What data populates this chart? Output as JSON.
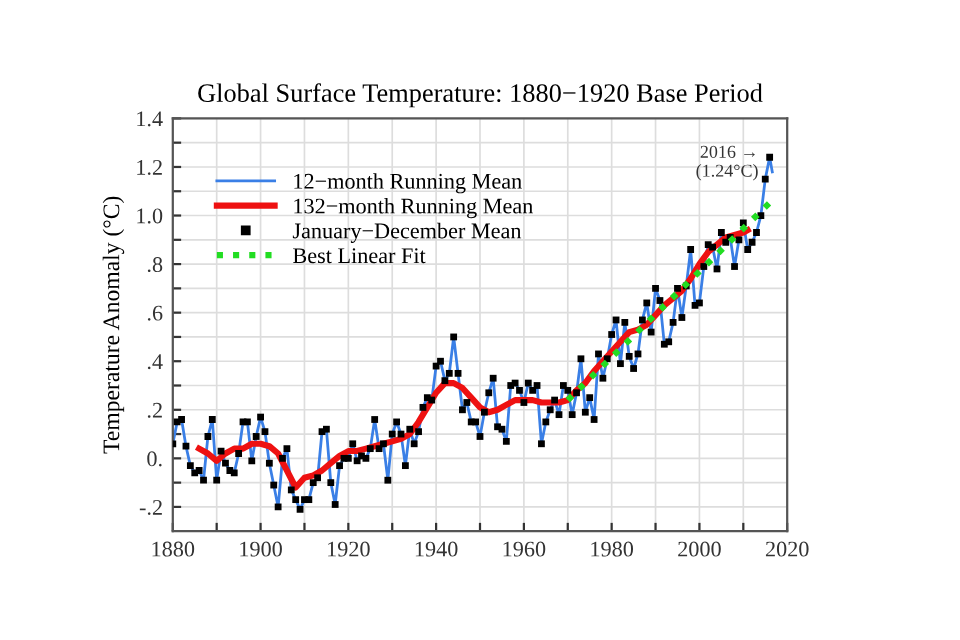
{
  "chart_data": {
    "type": "line",
    "title": "Global Surface Temperature: 1880−1920 Base Period",
    "ylabel": "Temperature Anomaly (°C)",
    "xlim": [
      1880,
      2020
    ],
    "xticks": [
      1880,
      {
        "value": 1890,
        "label": null
      },
      1900,
      {
        "value": 1910,
        "label": null
      },
      1920,
      {
        "value": 1930,
        "label": null
      },
      1940,
      {
        "value": 1950,
        "label": null
      },
      1960,
      {
        "value": 1970,
        "label": null
      },
      1980,
      {
        "value": 1990,
        "label": null
      },
      2000,
      {
        "value": 2010,
        "label": null
      },
      2020
    ],
    "ylim": [
      -0.3,
      1.4
    ],
    "yticks": [
      {
        "value": -0.2,
        "label": "-.2"
      },
      {
        "value": -0.1,
        "label": null
      },
      {
        "value": 0,
        "label": "0."
      },
      {
        "value": 0.1,
        "label": null
      },
      {
        "value": 0.2,
        "label": ".2"
      },
      {
        "value": 0.3,
        "label": null
      },
      {
        "value": 0.4,
        "label": ".4"
      },
      {
        "value": 0.5,
        "label": null
      },
      {
        "value": 0.6,
        "label": ".6"
      },
      {
        "value": 0.7,
        "label": null
      },
      {
        "value": 0.8,
        "label": ".8"
      },
      {
        "value": 0.9,
        "label": null
      },
      {
        "value": 1.0,
        "label": "1.0"
      },
      {
        "value": 1.1,
        "label": null
      },
      {
        "value": 1.2,
        "label": "1.2"
      },
      {
        "value": 1.3,
        "label": null
      },
      1.4
    ],
    "grid": true,
    "legend": "top left",
    "annotations": [
      {
        "text": "2016 →\n(1.24°C)",
        "x": 2016,
        "y": 1.24
      }
    ],
    "series": [
      {
        "name": "12−month Running Mean",
        "color": "#3a7fe6",
        "marker": "none",
        "line_style": "solid",
        "x": [
          1880,
          1881,
          1882,
          1883,
          1884,
          1885,
          1886,
          1887,
          1888,
          1889,
          1890,
          1891,
          1892,
          1893,
          1894,
          1895,
          1896,
          1897,
          1898,
          1899,
          1900,
          1901,
          1902,
          1903,
          1904,
          1905,
          1906,
          1907,
          1908,
          1909,
          1910,
          1911,
          1912,
          1913,
          1914,
          1915,
          1916,
          1917,
          1918,
          1919,
          1920,
          1921,
          1922,
          1923,
          1924,
          1925,
          1926,
          1927,
          1928,
          1929,
          1930,
          1931,
          1932,
          1933,
          1934,
          1935,
          1936,
          1937,
          1938,
          1939,
          1940,
          1941,
          1942,
          1943,
          1944,
          1945,
          1946,
          1947,
          1948,
          1949,
          1950,
          1951,
          1952,
          1953,
          1954,
          1955,
          1956,
          1957,
          1958,
          1959,
          1960,
          1961,
          1962,
          1963,
          1964,
          1965,
          1966,
          1967,
          1968,
          1969,
          1970,
          1971,
          1972,
          1973,
          1974,
          1975,
          1976,
          1977,
          1978,
          1979,
          1980,
          1981,
          1982,
          1983,
          1984,
          1985,
          1986,
          1987,
          1988,
          1989,
          1990,
          1991,
          1992,
          1993,
          1994,
          1995,
          1996,
          1997,
          1998,
          1999,
          2000,
          2001,
          2002,
          2003,
          2004,
          2005,
          2006,
          2007,
          2008,
          2009,
          2010,
          2011,
          2012,
          2013,
          2014,
          2015,
          2016,
          2016.6
        ],
        "values": [
          0.06,
          0.15,
          0.16,
          0.05,
          -0.03,
          -0.06,
          -0.05,
          -0.09,
          0.09,
          0.16,
          -0.09,
          0.03,
          -0.02,
          -0.05,
          -0.06,
          0.02,
          0.15,
          0.15,
          -0.01,
          0.09,
          0.17,
          0.11,
          -0.02,
          -0.11,
          -0.2,
          0.0,
          0.04,
          -0.13,
          -0.17,
          -0.21,
          -0.17,
          -0.17,
          -0.1,
          -0.08,
          0.11,
          0.12,
          -0.1,
          -0.19,
          -0.03,
          0.0,
          0.0,
          0.06,
          -0.01,
          0.01,
          0.0,
          0.04,
          0.16,
          0.04,
          0.06,
          -0.09,
          0.1,
          0.15,
          0.1,
          -0.03,
          0.12,
          0.06,
          0.11,
          0.21,
          0.25,
          0.24,
          0.38,
          0.4,
          0.32,
          0.35,
          0.5,
          0.35,
          0.2,
          0.23,
          0.15,
          0.15,
          0.09,
          0.19,
          0.27,
          0.33,
          0.13,
          0.12,
          0.07,
          0.3,
          0.31,
          0.28,
          0.23,
          0.31,
          0.28,
          0.3,
          0.06,
          0.15,
          0.2,
          0.24,
          0.18,
          0.3,
          0.28,
          0.18,
          0.27,
          0.41,
          0.19,
          0.25,
          0.16,
          0.43,
          0.33,
          0.41,
          0.51,
          0.57,
          0.39,
          0.56,
          0.42,
          0.37,
          0.43,
          0.57,
          0.64,
          0.52,
          0.7,
          0.65,
          0.47,
          0.48,
          0.56,
          0.7,
          0.58,
          0.71,
          0.86,
          0.63,
          0.64,
          0.79,
          0.88,
          0.87,
          0.78,
          0.93,
          0.89,
          0.91,
          0.79,
          0.9,
          0.97,
          0.86,
          0.89,
          0.93,
          1.0,
          1.15,
          1.24,
          1.18
        ]
      },
      {
        "name": "132−month Running Mean",
        "color": "#ee1111",
        "marker": "none",
        "line_style": "solid",
        "x": [
          1886,
          1888,
          1890,
          1892,
          1894,
          1896,
          1898,
          1900,
          1902,
          1904,
          1906,
          1908,
          1910,
          1912,
          1914,
          1916,
          1918,
          1920,
          1922,
          1924,
          1926,
          1928,
          1930,
          1932,
          1934,
          1936,
          1938,
          1940,
          1942,
          1944,
          1946,
          1948,
          1950,
          1952,
          1954,
          1956,
          1958,
          1960,
          1962,
          1964,
          1966,
          1968,
          1970,
          1972,
          1974,
          1976,
          1978,
          1980,
          1982,
          1984,
          1986,
          1988,
          1990,
          1992,
          1994,
          1996,
          1998,
          2000,
          2002,
          2004,
          2006,
          2008,
          2010,
          2011
        ],
        "values": [
          0.04,
          0.02,
          -0.01,
          0.02,
          0.04,
          0.04,
          0.06,
          0.06,
          0.05,
          0.02,
          -0.05,
          -0.12,
          -0.08,
          -0.07,
          -0.05,
          -0.02,
          0.01,
          0.03,
          0.03,
          0.04,
          0.05,
          0.06,
          0.07,
          0.08,
          0.1,
          0.15,
          0.21,
          0.27,
          0.31,
          0.31,
          0.29,
          0.25,
          0.21,
          0.19,
          0.2,
          0.22,
          0.24,
          0.24,
          0.24,
          0.23,
          0.23,
          0.23,
          0.24,
          0.28,
          0.31,
          0.36,
          0.4,
          0.44,
          0.48,
          0.52,
          0.53,
          0.55,
          0.59,
          0.63,
          0.66,
          0.69,
          0.74,
          0.8,
          0.85,
          0.88,
          0.91,
          0.92,
          0.93,
          0.94
        ]
      },
      {
        "name": "January−December Mean",
        "color": "#000000",
        "type": "scatter",
        "marker": "square",
        "x": [
          1880,
          1881,
          1882,
          1883,
          1884,
          1885,
          1886,
          1887,
          1888,
          1889,
          1890,
          1891,
          1892,
          1893,
          1894,
          1895,
          1896,
          1897,
          1898,
          1899,
          1900,
          1901,
          1902,
          1903,
          1904,
          1905,
          1906,
          1907,
          1908,
          1909,
          1910,
          1911,
          1912,
          1913,
          1914,
          1915,
          1916,
          1917,
          1918,
          1919,
          1920,
          1921,
          1922,
          1923,
          1924,
          1925,
          1926,
          1927,
          1928,
          1929,
          1930,
          1931,
          1932,
          1933,
          1934,
          1935,
          1936,
          1937,
          1938,
          1939,
          1940,
          1941,
          1942,
          1943,
          1944,
          1945,
          1946,
          1947,
          1948,
          1949,
          1950,
          1951,
          1952,
          1953,
          1954,
          1955,
          1956,
          1957,
          1958,
          1959,
          1960,
          1961,
          1962,
          1963,
          1964,
          1965,
          1966,
          1967,
          1968,
          1969,
          1970,
          1971,
          1972,
          1973,
          1974,
          1975,
          1976,
          1977,
          1978,
          1979,
          1980,
          1981,
          1982,
          1983,
          1984,
          1985,
          1986,
          1987,
          1988,
          1989,
          1990,
          1991,
          1992,
          1993,
          1994,
          1995,
          1996,
          1997,
          1998,
          1999,
          2000,
          2001,
          2002,
          2003,
          2004,
          2005,
          2006,
          2007,
          2008,
          2009,
          2010,
          2011,
          2012,
          2013,
          2014,
          2015,
          2016
        ],
        "values": [
          0.06,
          0.15,
          0.16,
          0.05,
          -0.03,
          -0.06,
          -0.05,
          -0.09,
          0.09,
          0.16,
          -0.09,
          0.03,
          -0.02,
          -0.05,
          -0.06,
          0.02,
          0.15,
          0.15,
          -0.01,
          0.09,
          0.17,
          0.11,
          -0.02,
          -0.11,
          -0.2,
          0.0,
          0.04,
          -0.13,
          -0.17,
          -0.21,
          -0.17,
          -0.17,
          -0.1,
          -0.08,
          0.11,
          0.12,
          -0.1,
          -0.19,
          -0.03,
          0.0,
          0.0,
          0.06,
          -0.01,
          0.01,
          0.0,
          0.04,
          0.16,
          0.04,
          0.06,
          -0.09,
          0.1,
          0.15,
          0.1,
          -0.03,
          0.12,
          0.06,
          0.11,
          0.21,
          0.25,
          0.24,
          0.38,
          0.4,
          0.32,
          0.35,
          0.5,
          0.35,
          0.2,
          0.23,
          0.15,
          0.15,
          0.09,
          0.19,
          0.27,
          0.33,
          0.13,
          0.12,
          0.07,
          0.3,
          0.31,
          0.28,
          0.23,
          0.31,
          0.28,
          0.3,
          0.06,
          0.15,
          0.2,
          0.24,
          0.18,
          0.3,
          0.28,
          0.18,
          0.27,
          0.41,
          0.19,
          0.25,
          0.16,
          0.43,
          0.33,
          0.41,
          0.51,
          0.57,
          0.39,
          0.56,
          0.42,
          0.37,
          0.43,
          0.57,
          0.64,
          0.52,
          0.7,
          0.65,
          0.47,
          0.48,
          0.56,
          0.7,
          0.58,
          0.71,
          0.86,
          0.63,
          0.64,
          0.79,
          0.88,
          0.87,
          0.78,
          0.93,
          0.89,
          0.91,
          0.79,
          0.9,
          0.97,
          0.86,
          0.89,
          0.93,
          1.0,
          1.15,
          1.24
        ]
      },
      {
        "name": "Best Linear Fit",
        "color": "#22dd22",
        "marker": "none",
        "line_style": "dotted",
        "x": [
          1970,
          2017
        ],
        "values": [
          0.24,
          1.07
        ]
      }
    ]
  }
}
